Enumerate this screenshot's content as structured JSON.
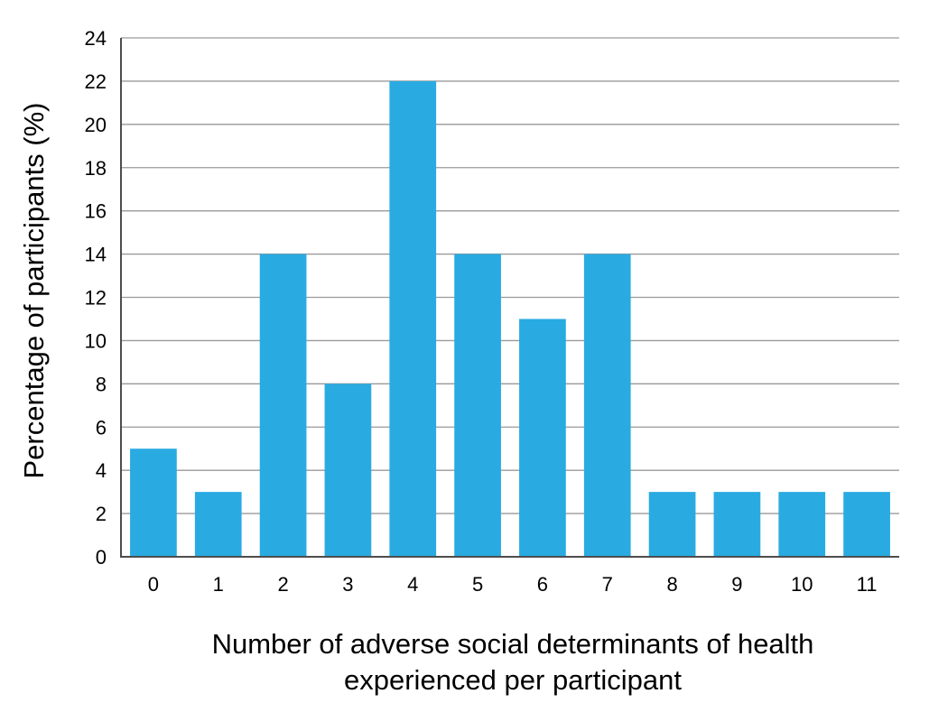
{
  "chart_data": {
    "type": "bar",
    "title": "",
    "xlabel_lines": [
      "Number of adverse social determinants of health",
      "experienced per participant"
    ],
    "ylabel": "Percentage of participants (%)",
    "categories": [
      "0",
      "1",
      "2",
      "3",
      "4",
      "5",
      "6",
      "7",
      "8",
      "9",
      "10",
      "11"
    ],
    "values": [
      5,
      3,
      14,
      8,
      22,
      14,
      11,
      14,
      3,
      3,
      3,
      3
    ],
    "ylim": [
      0,
      24
    ],
    "yticks": [
      0,
      2,
      4,
      6,
      8,
      10,
      12,
      14,
      16,
      18,
      20,
      22,
      24
    ],
    "grid": "horizontal",
    "legend": "none",
    "bar_color": "#29ABE2"
  }
}
